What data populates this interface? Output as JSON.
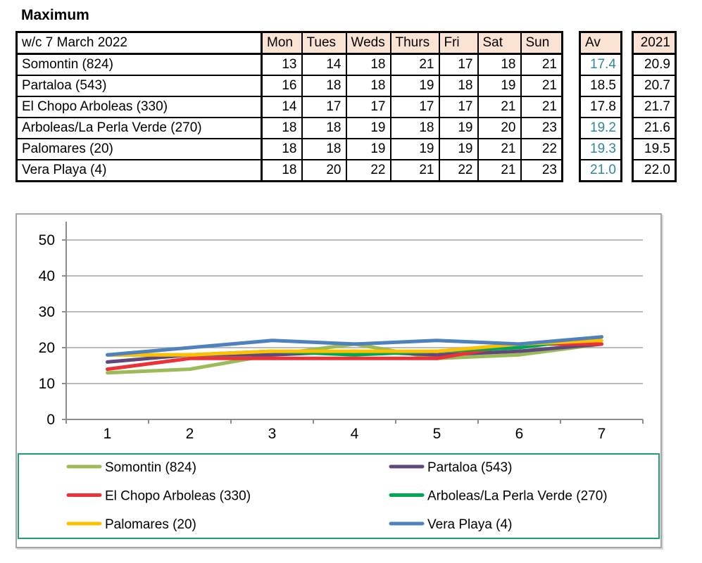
{
  "page": {
    "title": "Maximum"
  },
  "table": {
    "corner_header": "w/c 7 March 2022",
    "day_headers": [
      "Mon",
      "Tues",
      "Weds",
      "Thurs",
      "Fri",
      "Sat",
      "Sun"
    ],
    "av_header": "Av",
    "year_header": "2021",
    "header_bg": "#FBE3D4",
    "teal_text_color": "#31859C",
    "rows": [
      {
        "label": "Somontin (824)",
        "days": [
          13,
          14,
          18,
          21,
          17,
          18,
          21
        ],
        "av": "17.4",
        "av_teal": true,
        "prev_year": "20.9"
      },
      {
        "label": "Partaloa (543)",
        "days": [
          16,
          18,
          18,
          19,
          18,
          19,
          21
        ],
        "av": "18.5",
        "av_teal": false,
        "prev_year": "20.7"
      },
      {
        "label": "El Chopo  Arboleas (330)",
        "days": [
          14,
          17,
          17,
          17,
          17,
          21,
          21
        ],
        "av": "17.8",
        "av_teal": false,
        "prev_year": "21.7"
      },
      {
        "label": "Arboleas/La Perla Verde (270)",
        "days": [
          18,
          18,
          19,
          18,
          19,
          20,
          23
        ],
        "av": "19.2",
        "av_teal": true,
        "prev_year": "21.6"
      },
      {
        "label": "Palomares (20)",
        "days": [
          18,
          18,
          19,
          19,
          19,
          21,
          22
        ],
        "av": "19.3",
        "av_teal": true,
        "prev_year": "19.5"
      },
      {
        "label": "Vera Playa (4)",
        "days": [
          18,
          20,
          22,
          21,
          22,
          21,
          23
        ],
        "av": "21.0",
        "av_teal": true,
        "prev_year": "22.0"
      }
    ]
  },
  "chart_data": {
    "type": "line",
    "x": [
      1,
      2,
      3,
      4,
      5,
      6,
      7
    ],
    "series": [
      {
        "name": "Somontin (824)",
        "color": "#9BBB59",
        "values": [
          13,
          14,
          18,
          21,
          17,
          18,
          21
        ]
      },
      {
        "name": "Partaloa (543)",
        "color": "#5F497A",
        "values": [
          16,
          18,
          18,
          19,
          18,
          19,
          21
        ]
      },
      {
        "name": "El Chopo  Arboleas (330)",
        "color": "#ED3237",
        "values": [
          14,
          17,
          17,
          17,
          17,
          21,
          21
        ]
      },
      {
        "name": "Arboleas/La Perla Verde (270)",
        "color": "#00A651",
        "values": [
          18,
          18,
          19,
          18,
          19,
          20,
          23
        ]
      },
      {
        "name": "Palomares (20)",
        "color": "#FFC000",
        "values": [
          18,
          18,
          19,
          19,
          19,
          21,
          22
        ]
      },
      {
        "name": "Vera Playa (4)",
        "color": "#4F81BD",
        "values": [
          18,
          20,
          22,
          21,
          22,
          21,
          23
        ]
      }
    ],
    "title": "",
    "xlabel": "",
    "ylabel": "",
    "ylim": [
      0,
      50
    ],
    "yticks": [
      0,
      10,
      20,
      30,
      40,
      50
    ],
    "grid": true,
    "legend_position": "bottom",
    "legend_border_color": "#1F9E77",
    "axis_color": "#8C8C8C",
    "gridline_color": "#A6A6A6",
    "label_color": "#000000"
  }
}
